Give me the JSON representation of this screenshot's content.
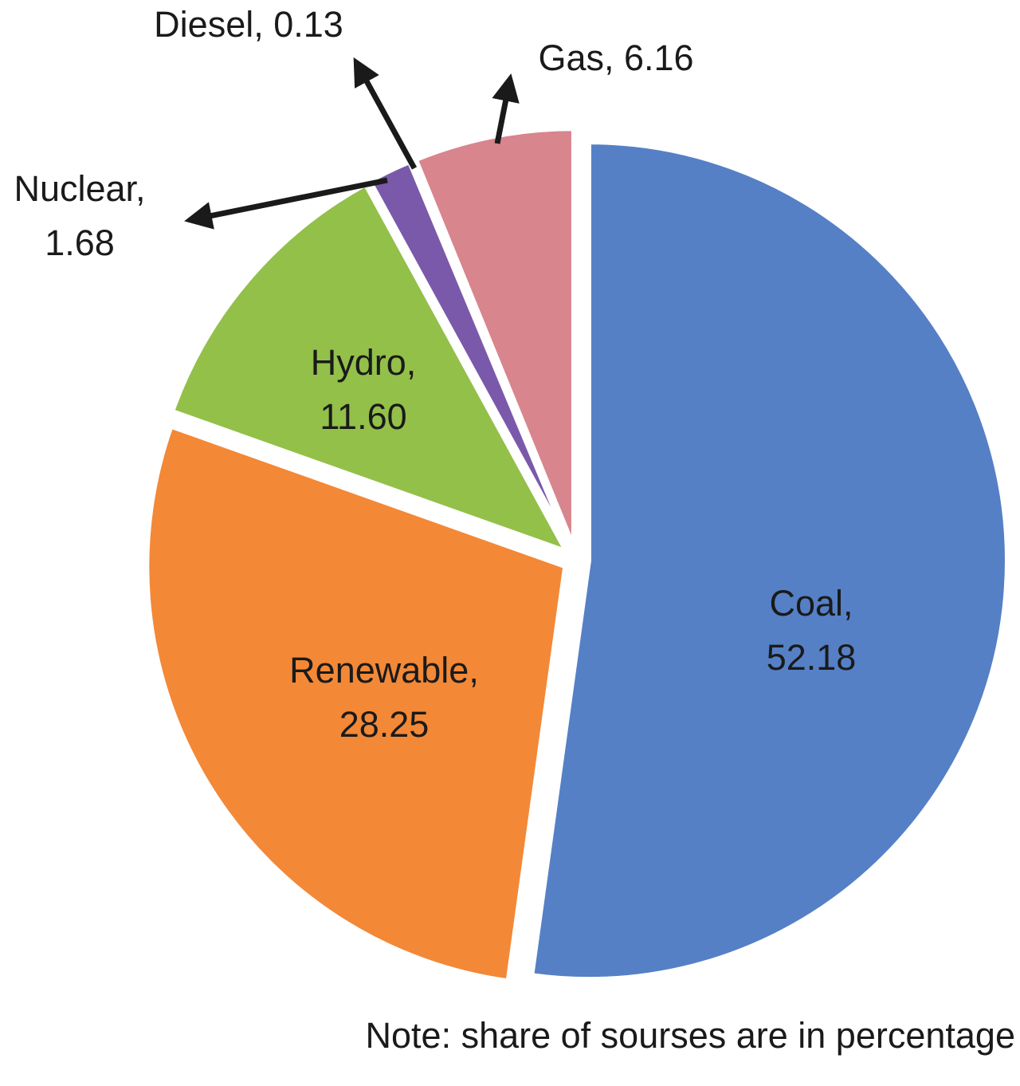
{
  "chart_data": {
    "type": "pie",
    "value_unit": "%",
    "slices": [
      {
        "label": "Coal",
        "value": 52.18,
        "display": "52.18",
        "color": "#5580C6"
      },
      {
        "label": "Renewable",
        "value": 28.25,
        "display": "28.25",
        "color": "#F38837"
      },
      {
        "label": "Hydro",
        "value": 11.6,
        "display": "11.60",
        "color": "#93C049"
      },
      {
        "label": "Nuclear",
        "value": 1.68,
        "display": "1.68",
        "color": "#7A59AA"
      },
      {
        "label": "Diesel",
        "value": 0.13,
        "display": "0.13",
        "color": "#2B2B2B"
      },
      {
        "label": "Gas",
        "value": 6.16,
        "display": "6.16",
        "color": "#D8858D"
      }
    ],
    "start_angle": "12 o'clock",
    "direction": "clockwise",
    "exploded": true,
    "legend": "none",
    "annotation": "Note: share of sourses are in percentage"
  }
}
